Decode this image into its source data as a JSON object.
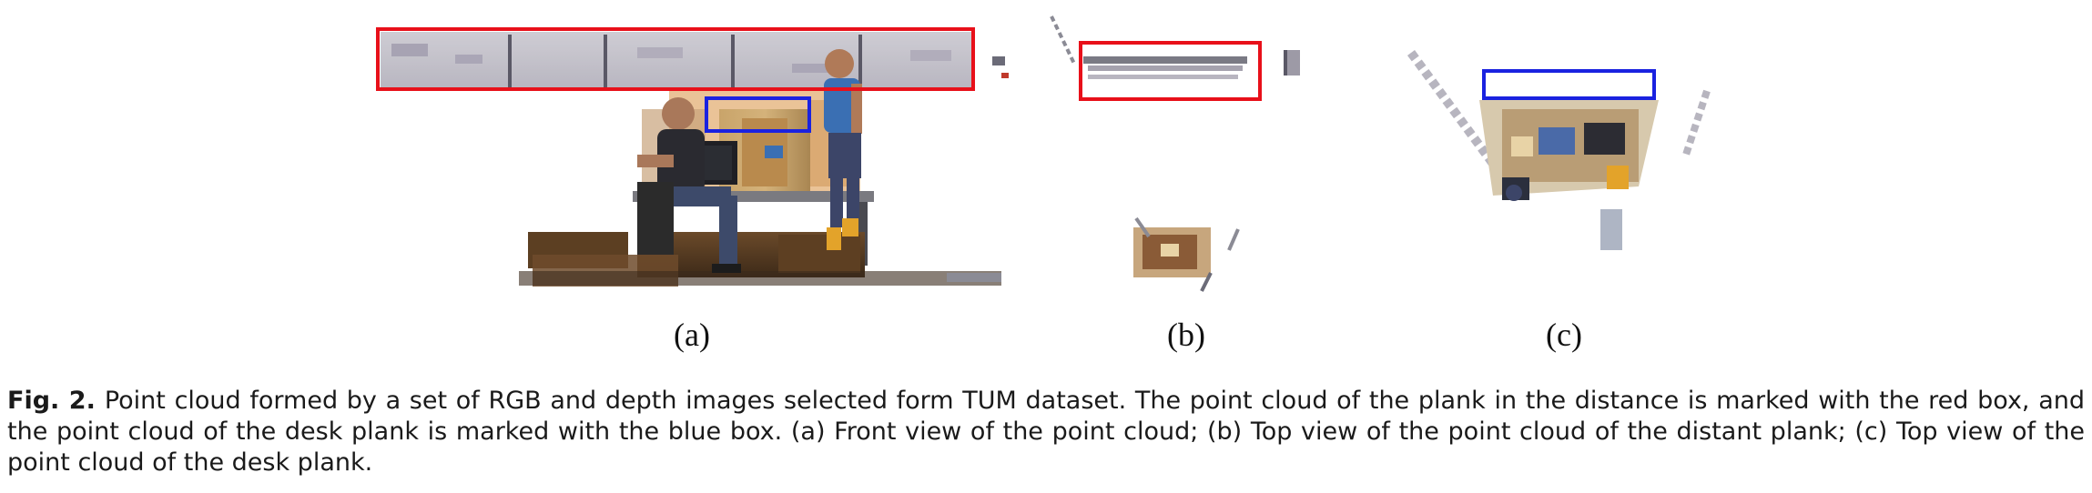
{
  "figure": {
    "subcaptions": [
      "(a)",
      "(b)",
      "(c)"
    ],
    "box_colors": {
      "distant_plank": "#e8101a",
      "desk_plank": "#1a22e0"
    }
  },
  "caption": {
    "label": "Fig. 2.",
    "text": "Point cloud formed by a set of RGB and depth images selected form TUM dataset. The point cloud of the plank in the distance is marked with the red box, and the point cloud of the desk plank is marked with the blue box. (a) Front view of the point cloud; (b) Top view of the point cloud of the distant plank; (c) Top view of the point cloud of the desk plank."
  }
}
